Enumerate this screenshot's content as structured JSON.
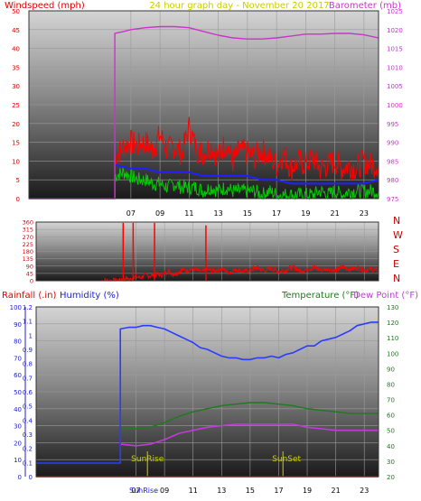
{
  "chart_data": [
    {
      "type": "line",
      "title": "24 hour graph day - November 20 2017",
      "ylabel": "Windspeed (mph)",
      "y2label": "Barometer (mb)",
      "ylim": [
        0,
        50
      ],
      "y2lim": [
        975,
        1025
      ],
      "yticks": [
        "0",
        "5",
        "10",
        "15",
        "20",
        "25",
        "30",
        "35",
        "40",
        "45",
        "50"
      ],
      "y2ticks": [
        "975",
        "980",
        "985",
        "990",
        "995",
        "1000",
        "1005",
        "1010",
        "1015",
        "1020",
        "1025"
      ],
      "xlim": [
        0,
        24
      ],
      "xticks": [
        "07",
        "09",
        "11",
        "13",
        "15",
        "17",
        "19",
        "21",
        "23"
      ],
      "grid": true,
      "colors": {
        "wind_avg": "#00cc00",
        "wind_gust": "#ff0000",
        "wind_mean": "#2020ff",
        "barometer": "#cc33cc"
      },
      "series": {
        "windspeed_avg": {
          "x": [
            0,
            5.9,
            5.9,
            6.5,
            7,
            7.5,
            8,
            8.5,
            9,
            9.5,
            10,
            10.5,
            11,
            11.5,
            12,
            12.5,
            13,
            13.5,
            14,
            14.5,
            15,
            15.5,
            16,
            16.5,
            17,
            17.5,
            18,
            18.5,
            19,
            19.5,
            20,
            20.5,
            21,
            21.5,
            22,
            22.5,
            23,
            23.5,
            24
          ],
          "y": [
            0,
            0,
            6,
            7,
            6,
            5,
            5,
            4,
            4,
            3,
            4,
            3,
            3,
            3,
            2,
            3,
            2,
            3,
            2,
            2,
            2,
            2,
            1,
            2,
            1,
            1,
            1,
            1,
            1,
            1,
            2,
            1,
            2,
            1,
            2,
            2,
            2,
            2,
            2
          ]
        },
        "windspeed_gust": {
          "x": [
            0,
            5.9,
            5.9,
            6.5,
            7,
            7.5,
            8,
            8.5,
            9,
            9.5,
            10,
            10.5,
            11,
            11.5,
            12,
            12.5,
            13,
            13.5,
            14,
            14.5,
            15,
            15.5,
            16,
            16.5,
            17,
            17.5,
            18,
            18.5,
            19,
            19.5,
            20,
            20.5,
            21,
            21.5,
            22,
            22.5,
            23,
            23.5,
            24
          ],
          "y": [
            0,
            0,
            11,
            14,
            15,
            14,
            15,
            13,
            17,
            13,
            14,
            12,
            19,
            13,
            12,
            14,
            11,
            15,
            10,
            13,
            12,
            11,
            13,
            11,
            9,
            12,
            8,
            10,
            9,
            11,
            8,
            9,
            10,
            8,
            9,
            8,
            10,
            9,
            9
          ]
        },
        "windspeed_mean": {
          "x": [
            5.9,
            7,
            8,
            9,
            10,
            11,
            12,
            13,
            14,
            15,
            16,
            17,
            18,
            19,
            20,
            21,
            22,
            23,
            24
          ],
          "y": [
            9,
            8,
            8,
            7,
            7,
            7,
            6,
            6,
            6,
            6,
            5,
            5,
            4,
            4,
            4,
            4,
            4,
            4,
            5
          ]
        },
        "barometer": {
          "x": [
            0,
            5.9,
            5.9,
            6.5,
            7,
            8,
            9,
            10,
            11,
            12,
            13,
            14,
            15,
            16,
            17,
            18,
            19,
            20,
            21,
            22,
            23,
            24
          ],
          "y": [
            975,
            975,
            1019,
            1019.5,
            1020,
            1020.5,
            1020.8,
            1020.8,
            1020.5,
            1019.5,
            1018.5,
            1017.8,
            1017.5,
            1017.5,
            1017.8,
            1018.3,
            1018.8,
            1018.8,
            1019,
            1019,
            1018.6,
            1017.8
          ]
        }
      }
    },
    {
      "type": "line",
      "ylabel": "Wind direction",
      "ylim": [
        0,
        360
      ],
      "yticks": [
        "0",
        "45",
        "90",
        "135",
        "180",
        "225",
        "270",
        "315",
        "360"
      ],
      "compass": [
        "N",
        "W",
        "S",
        "E",
        "N"
      ],
      "colors": {
        "direction": "#ff0000",
        "direction_dots": "#000000"
      },
      "series": {
        "direction": {
          "x": [
            4.5,
            5.9,
            6,
            6.3,
            6.6,
            6.9,
            7,
            7.3,
            7.6,
            8,
            8.4,
            8.8,
            9,
            9.3,
            9.6,
            9.9,
            10.3,
            10.6,
            10.8,
            11.2,
            11.6,
            12,
            12.5,
            13,
            13.5,
            14,
            14.5,
            15,
            15.5,
            16,
            16.5,
            17,
            17.5,
            18,
            18.5,
            19,
            19.5,
            20,
            20.5,
            21,
            21.5,
            22,
            22.5,
            23,
            23.5,
            24
          ],
          "y": [
            0,
            3,
            10,
            15,
            8,
            20,
            25,
            18,
            35,
            30,
            40,
            35,
            45,
            60,
            40,
            50,
            70,
            60,
            75,
            65,
            55,
            70,
            60,
            75,
            50,
            70,
            55,
            65,
            80,
            60,
            75,
            55,
            65,
            85,
            60,
            70,
            80,
            65,
            75,
            60,
            85,
            70,
            80,
            65,
            70,
            60
          ]
        },
        "spikes": {
          "x": [
            6.1,
            6.8,
            8.3,
            11.9
          ],
          "y": [
            355,
            355,
            355,
            340
          ]
        }
      }
    },
    {
      "type": "line",
      "ylabel_left": "Rainfall (.in)",
      "ylabel_humidity": "Humidity (%)",
      "ylabel_temp": "Temperature (°F)",
      "ylabel_dew": "Dew Point (°F)",
      "humidity_ticks": [
        "0",
        "10",
        "20",
        "30",
        "40",
        "50",
        "60",
        "70",
        "80",
        "90",
        "100"
      ],
      "rain_ticks": [
        "0",
        "0.1",
        "0.2",
        "0.3",
        "0.4",
        "0.5",
        "0.6",
        "0.7",
        "0.8",
        "0.9",
        "1",
        "1.1",
        "1.2"
      ],
      "temp_ticks": [
        "20",
        "30",
        "40",
        "50",
        "60",
        "70",
        "80",
        "90",
        "100",
        "110",
        "120",
        "130"
      ],
      "xticks": [
        "07",
        "09",
        "11",
        "13",
        "15",
        "17",
        "19",
        "21",
        "23"
      ],
      "sunrise_label": "SunRise",
      "sunset_label": "SunSet",
      "sunrise_hour": 7.8,
      "sunset_hour": 17.3,
      "axis_caption": "SunRise",
      "colors": {
        "humidity": "#2a3cff",
        "temperature": "#1f7a1f",
        "dewpoint": "#c03bd9",
        "rainfall": "#ff0000"
      },
      "series": {
        "humidity": {
          "x": [
            0,
            5.9,
            5.9,
            6.5,
            7,
            7.5,
            8,
            8.5,
            9,
            9.5,
            10,
            10.5,
            11,
            11.5,
            12,
            12.5,
            13,
            13.5,
            14,
            14.5,
            15,
            15.5,
            16,
            16.5,
            17,
            17.5,
            18,
            18.5,
            19,
            19.5,
            20,
            20.5,
            21,
            21.5,
            22,
            22.5,
            23,
            23.5,
            24
          ],
          "y": [
            8,
            8,
            87,
            88,
            88,
            89,
            89,
            88,
            87,
            85,
            83,
            81,
            79,
            76,
            75,
            73,
            71,
            70,
            70,
            69,
            69,
            70,
            70,
            71,
            70,
            72,
            73,
            75,
            77,
            77,
            80,
            81,
            82,
            84,
            86,
            89,
            90,
            91,
            91
          ]
        },
        "temperature": {
          "x": [
            5.9,
            7,
            8,
            9,
            10,
            11,
            12,
            13,
            14,
            15,
            16,
            17,
            18,
            19,
            20,
            21,
            22,
            23,
            24
          ],
          "y": [
            51,
            51,
            52,
            55,
            59,
            62,
            64,
            66,
            67,
            68,
            68,
            67,
            66,
            64,
            63,
            62,
            61,
            61,
            61
          ]
        },
        "dewpoint": {
          "x": [
            5.9,
            7,
            8,
            9,
            10,
            11,
            12,
            13,
            14,
            15,
            16,
            17,
            18,
            19,
            20,
            21,
            22,
            23,
            24
          ],
          "y": [
            41,
            40,
            41,
            44,
            48,
            50,
            52,
            53,
            54,
            54,
            54,
            54,
            54,
            52,
            51,
            50,
            50,
            50,
            50
          ]
        },
        "rainfall": {
          "x": [
            0,
            24
          ],
          "y": [
            0,
            0
          ]
        }
      }
    }
  ]
}
